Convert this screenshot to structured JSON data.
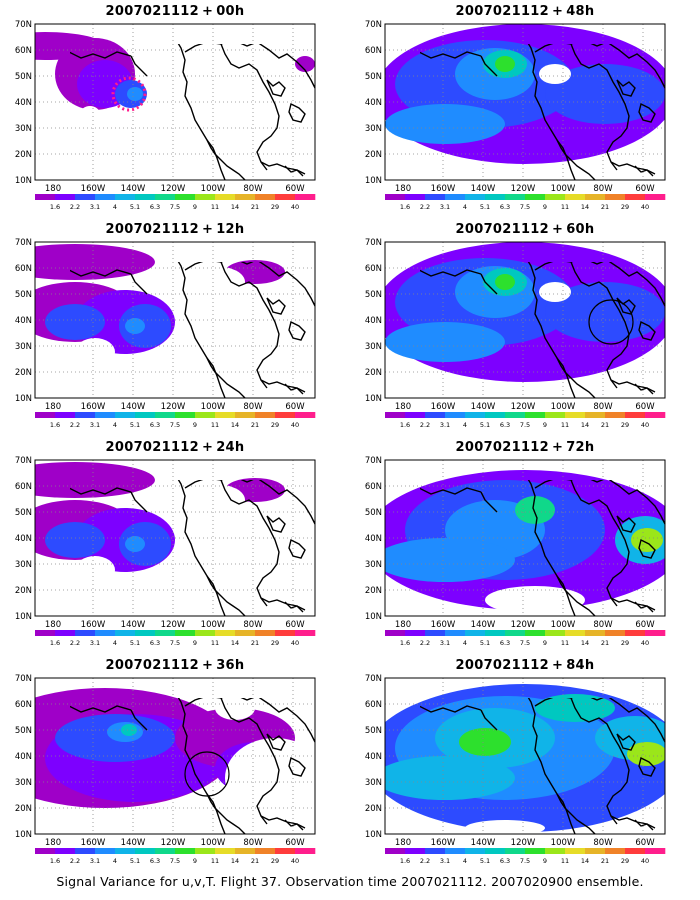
{
  "figure": {
    "footer": "Signal Variance for u,v,T. Flight 37. Observation time 2007021112. 2007020900 ensemble."
  },
  "colorbar": {
    "ticks": [
      "1.6",
      "2.2",
      "3.1",
      "4",
      "5.1",
      "6.3",
      "7.5",
      "9",
      "11",
      "14",
      "21",
      "29",
      "40"
    ],
    "colors": [
      "#9f00c8",
      "#7d00ff",
      "#2d4bff",
      "#1f8cff",
      "#10b4e8",
      "#00c8c0",
      "#10d88a",
      "#2de02d",
      "#9be61a",
      "#e6dc28",
      "#e6b428",
      "#f08228",
      "#ff3c3c",
      "#ff1e8c"
    ]
  },
  "axes": {
    "lon_labels": [
      "180",
      "160W",
      "140W",
      "120W",
      "100W",
      "80W",
      "60W"
    ],
    "lat_labels": [
      "10N",
      "20N",
      "30N",
      "40N",
      "50N",
      "60N",
      "70N"
    ]
  },
  "panels": [
    {
      "time": "2007021112",
      "plus": "+",
      "lead": "00h",
      "intensity": 0
    },
    {
      "time": "2007021112",
      "plus": "+",
      "lead": "12h",
      "intensity": 1
    },
    {
      "time": "2007021112",
      "plus": "+",
      "lead": "24h",
      "intensity": 1
    },
    {
      "time": "2007021112",
      "plus": "+",
      "lead": "36h",
      "intensity": 2
    },
    {
      "time": "2007021112",
      "plus": "+",
      "lead": "48h",
      "intensity": 3
    },
    {
      "time": "2007021112",
      "plus": "+",
      "lead": "60h",
      "intensity": 3
    },
    {
      "time": "2007021112",
      "plus": "+",
      "lead": "72h",
      "intensity": 4
    },
    {
      "time": "2007021112",
      "plus": "+",
      "lead": "84h",
      "intensity": 5
    }
  ]
}
